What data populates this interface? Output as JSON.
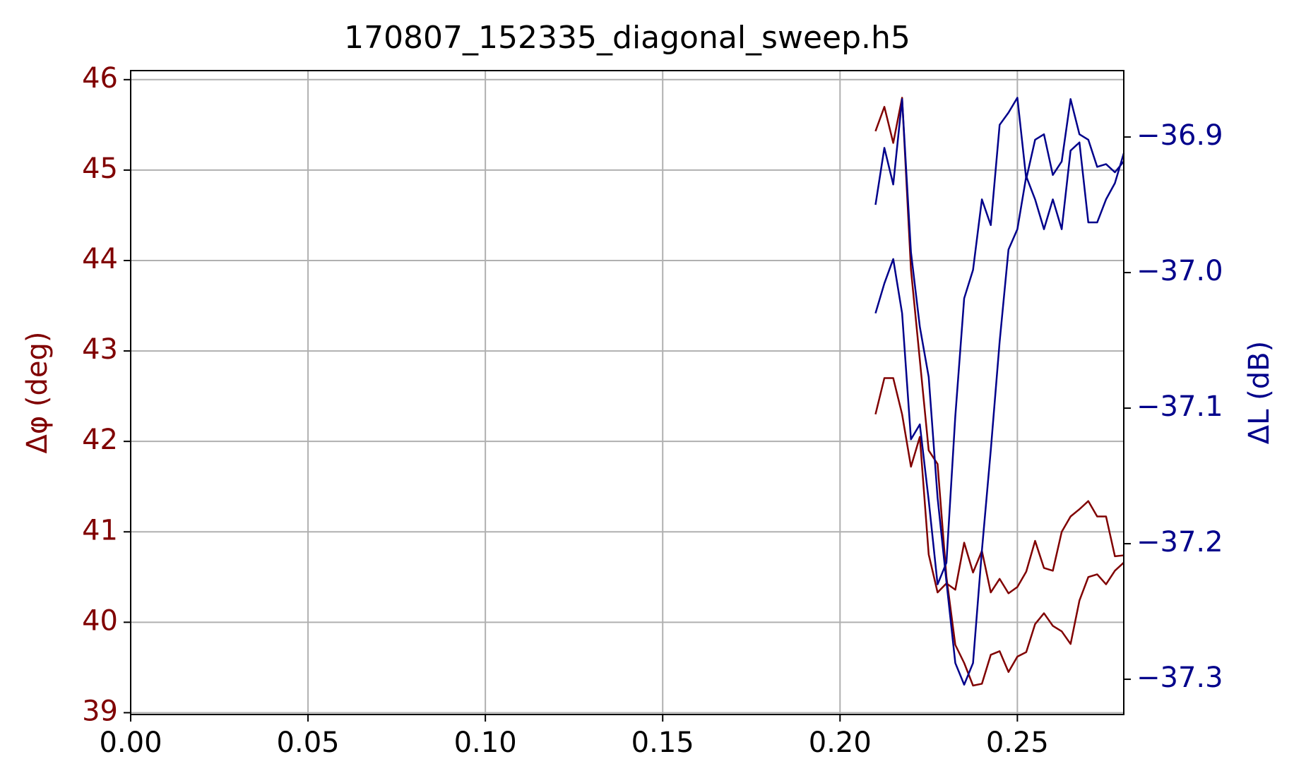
{
  "chart_data": {
    "type": "line",
    "title": "170807_152335_diagonal_sweep.h5",
    "y_label": "Δφ (deg)",
    "y2_label": "ΔL (dB)",
    "x": [
      0.21,
      0.2125,
      0.215,
      0.2175,
      0.22,
      0.2225,
      0.225,
      0.2275,
      0.23,
      0.2325,
      0.235,
      0.2375,
      0.24,
      0.2425,
      0.245,
      0.2475,
      0.25,
      0.2525,
      0.255,
      0.2575,
      0.26,
      0.2625,
      0.265,
      0.2675,
      0.27,
      0.2725,
      0.275,
      0.2775,
      0.28
    ],
    "series": [
      {
        "color": "#800000",
        "axis": "y",
        "values": [
          45.43,
          45.7,
          45.3,
          45.8,
          43.9,
          42.9,
          41.9,
          41.75,
          40.5,
          39.75,
          39.55,
          39.3,
          39.32,
          39.64,
          39.68,
          39.45,
          39.62,
          39.67,
          39.98,
          40.1,
          39.96,
          39.9,
          39.76,
          40.24,
          40.5,
          40.53,
          40.42,
          40.57,
          40.66
        ]
      },
      {
        "color": "#800000",
        "axis": "y",
        "values": [
          42.3,
          42.7,
          42.7,
          42.3,
          41.72,
          42.05,
          40.75,
          40.33,
          40.43,
          40.36,
          40.88,
          40.55,
          40.79,
          40.33,
          40.48,
          40.32,
          40.39,
          40.56,
          40.9,
          40.6,
          40.57,
          41.0,
          41.17,
          41.25,
          41.34,
          41.17,
          41.17,
          40.73,
          40.74
        ]
      },
      {
        "color": "#00008b",
        "axis": "y2",
        "values": [
          -36.95,
          -36.908,
          -36.935,
          -36.872,
          -36.985,
          -37.04,
          -37.077,
          -37.166,
          -37.228,
          -37.288,
          -37.304,
          -37.288,
          -37.205,
          -37.131,
          -37.051,
          -36.983,
          -36.968,
          -36.929,
          -36.946,
          -36.968,
          -36.946,
          -36.968,
          -36.91,
          -36.904,
          -36.963,
          -36.963,
          -36.946,
          -36.934,
          -36.912
        ]
      },
      {
        "color": "#00008b",
        "axis": "y2",
        "values": [
          -37.03,
          -37.008,
          -36.99,
          -37.03,
          -37.123,
          -37.112,
          -37.168,
          -37.23,
          -37.214,
          -37.106,
          -37.019,
          -36.998,
          -36.946,
          -36.965,
          -36.891,
          -36.882,
          -36.871,
          -36.931,
          -36.902,
          -36.898,
          -36.928,
          -36.918,
          -36.872,
          -36.898,
          -36.902,
          -36.922,
          -36.92,
          -36.926,
          -36.918
        ]
      }
    ],
    "xlim": [
      0,
      0.28
    ],
    "xticks": [
      {
        "value": 0,
        "label": "0.00"
      },
      {
        "value": 0.05,
        "label": "0.05"
      },
      {
        "value": 0.1,
        "label": "0.10"
      },
      {
        "value": 0.15,
        "label": "0.15"
      },
      {
        "value": 0.2,
        "label": "0.20"
      },
      {
        "value": 0.25,
        "label": "0.25"
      }
    ],
    "ylim": [
      38.98,
      46.1
    ],
    "yticks": [
      39,
      40,
      41,
      42,
      43,
      44,
      45,
      46
    ],
    "y2lim": [
      -37.326,
      -36.851
    ],
    "y2ticks": [
      {
        "value": -36.9,
        "label": "−36.9"
      },
      {
        "value": -37.0,
        "label": "−37.0"
      },
      {
        "value": -37.1,
        "label": "−37.1"
      },
      {
        "value": -37.2,
        "label": "−37.2"
      },
      {
        "value": -37.3,
        "label": "−37.3"
      }
    ],
    "grid": true
  }
}
